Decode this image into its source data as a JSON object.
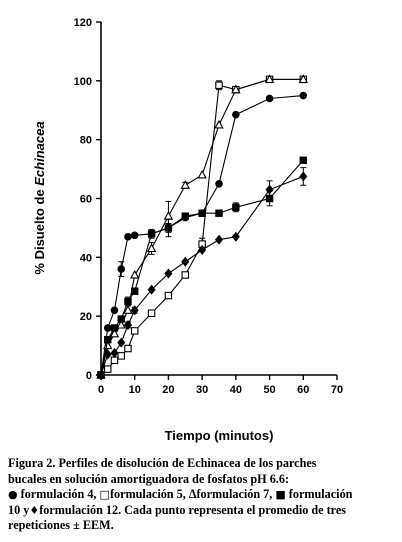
{
  "chart_data": {
    "type": "line",
    "xlabel": "Tiempo (minutos)",
    "ylabel_prefix": "% Disuelto de ",
    "ylabel_italic": "Echinacea",
    "xlim": [
      0,
      70
    ],
    "ylim": [
      0,
      120
    ],
    "xticks": [
      0,
      10,
      20,
      30,
      40,
      50,
      60,
      70
    ],
    "yticks": [
      0,
      20,
      40,
      60,
      80,
      100,
      120
    ],
    "grid": false,
    "series": [
      {
        "key": "f4",
        "marker": "circle-filled",
        "points": [
          [
            0,
            0
          ],
          [
            2,
            16
          ],
          [
            4,
            22
          ],
          [
            6,
            36
          ],
          [
            8,
            47
          ],
          [
            10,
            47.5
          ],
          [
            15,
            48
          ],
          [
            20,
            50
          ],
          [
            25,
            53.5
          ],
          [
            30,
            55
          ],
          [
            35,
            65
          ],
          [
            40,
            88.5
          ],
          [
            50,
            94
          ],
          [
            60,
            95
          ]
        ],
        "errors": [
          0,
          0,
          0,
          2.5,
          0,
          0,
          0,
          1.5,
          0,
          0,
          0,
          0,
          0,
          0
        ]
      },
      {
        "key": "f5",
        "marker": "square-open",
        "points": [
          [
            0,
            0
          ],
          [
            2,
            2
          ],
          [
            4,
            5
          ],
          [
            6,
            6.5
          ],
          [
            8,
            9
          ],
          [
            10,
            15
          ],
          [
            15,
            21
          ],
          [
            20,
            27
          ],
          [
            25,
            34
          ],
          [
            30,
            44.5
          ],
          [
            35,
            98.5
          ],
          [
            40,
            97
          ],
          [
            50,
            100.5
          ],
          [
            60,
            100.5
          ]
        ],
        "errors": [
          0,
          0,
          0,
          0,
          0,
          0,
          0,
          0,
          0,
          2,
          1.5,
          0,
          0,
          0
        ]
      },
      {
        "key": "f7",
        "marker": "triangle-open",
        "points": [
          [
            0,
            0
          ],
          [
            2,
            10
          ],
          [
            4,
            14
          ],
          [
            6,
            17
          ],
          [
            8,
            22
          ],
          [
            10,
            34
          ],
          [
            15,
            43
          ],
          [
            20,
            54
          ],
          [
            25,
            64.5
          ],
          [
            30,
            68
          ],
          [
            35,
            85
          ],
          [
            40,
            97
          ],
          [
            50,
            100.5
          ],
          [
            60,
            100.5
          ]
        ],
        "errors": [
          0,
          0,
          0,
          0,
          0,
          0,
          2,
          5,
          1,
          0,
          0,
          0,
          0,
          0
        ]
      },
      {
        "key": "f10",
        "marker": "square-filled",
        "points": [
          [
            0,
            0
          ],
          [
            2,
            12
          ],
          [
            4,
            16
          ],
          [
            6,
            19
          ],
          [
            8,
            25
          ],
          [
            10,
            28.5
          ],
          [
            15,
            48
          ],
          [
            20,
            50
          ],
          [
            25,
            54
          ],
          [
            30,
            55
          ],
          [
            35,
            55
          ],
          [
            40,
            57
          ],
          [
            50,
            60
          ],
          [
            60,
            73
          ]
        ],
        "errors": [
          0,
          0,
          0,
          0,
          1.5,
          0,
          1.5,
          3,
          0,
          0,
          0,
          1.5,
          2.5,
          0
        ]
      },
      {
        "key": "f12",
        "marker": "diamond-filled",
        "points": [
          [
            0,
            0
          ],
          [
            2,
            7
          ],
          [
            4,
            7.5
          ],
          [
            6,
            11
          ],
          [
            8,
            17
          ],
          [
            10,
            22
          ],
          [
            15,
            29
          ],
          [
            20,
            34.5
          ],
          [
            25,
            38.5
          ],
          [
            30,
            42.5
          ],
          [
            35,
            46
          ],
          [
            40,
            47
          ],
          [
            50,
            63
          ],
          [
            60,
            67.5
          ]
        ],
        "errors": [
          0,
          0,
          0,
          0,
          1,
          1,
          0,
          0,
          0,
          0,
          0,
          0,
          3,
          3
        ]
      }
    ]
  },
  "caption": {
    "line1": "Figura 2. Perfiles de disolución de Echinacea de los parches",
    "line2": "bucales en solución amortiguadora de fosfatos pH 6.6:",
    "sym_circle": "●",
    "txt_f4": " formulación 4, ",
    "sym_square_open": "□",
    "txt_f5": "formulación 5, ",
    "sym_triangle": "Δ",
    "txt_f7": "formulación 7, ",
    "sym_square_filled": "■",
    "txt_f10": " formulación",
    "txt_10": "10 y",
    "sym_diamond": "♦",
    "txt_f12": "formulación 12. Cada punto representa el promedio de tres",
    "line5": "repeticiones ± EEM."
  }
}
